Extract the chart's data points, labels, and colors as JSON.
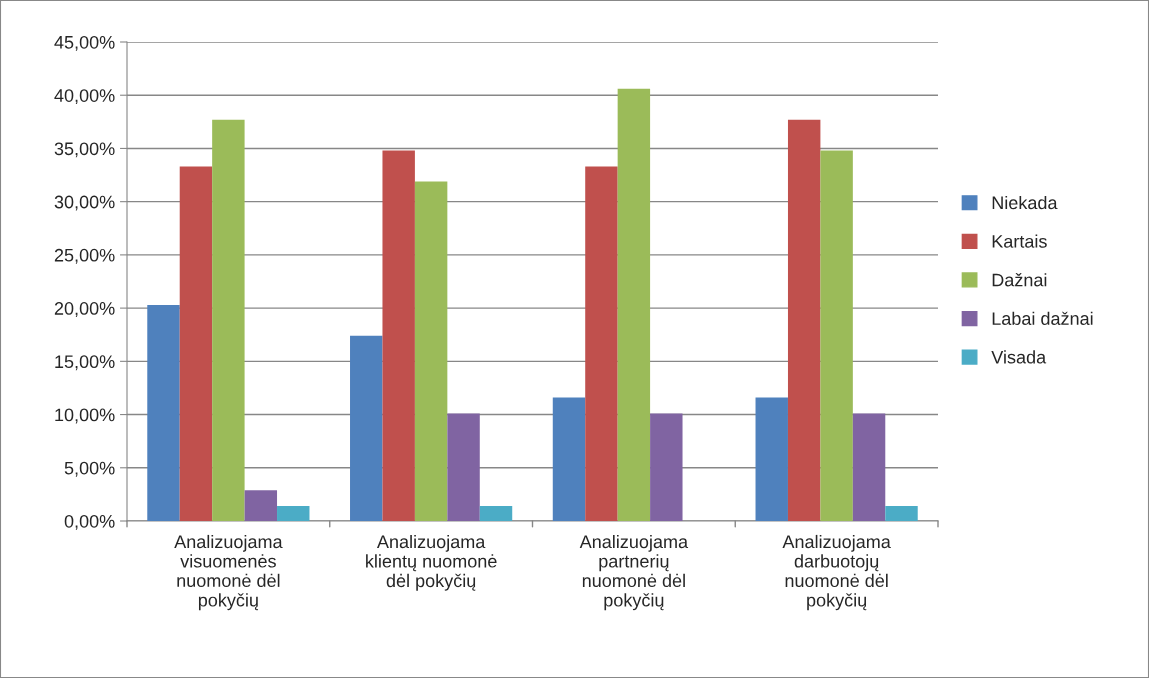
{
  "chart_data": {
    "type": "bar",
    "categories": [
      "Analizuojama visuomenės nuomonė dėl pokyčių",
      "Analizuojama klientų nuomonė dėl pokyčių",
      "Analizuojama partnerių nuomonė dėl pokyčių",
      "Analizuojama darbuotojų nuomonė dėl pokyčių"
    ],
    "series": [
      {
        "name": "Niekada",
        "color": "#4f81bd",
        "values": [
          20.3,
          17.4,
          11.6,
          11.6
        ]
      },
      {
        "name": "Kartais",
        "color": "#c0504d",
        "values": [
          33.3,
          34.8,
          33.3,
          37.7
        ]
      },
      {
        "name": "Dažnai",
        "color": "#9bbb59",
        "values": [
          37.7,
          31.9,
          40.6,
          34.8
        ]
      },
      {
        "name": "Labai dažnai",
        "color": "#8064a2",
        "values": [
          2.9,
          10.1,
          10.1,
          10.1
        ]
      },
      {
        "name": "Visada",
        "color": "#4bacc6",
        "values": [
          1.4,
          1.4,
          null,
          1.4
        ]
      }
    ],
    "ylim": [
      0,
      45
    ],
    "yticks": [
      {
        "value": 0,
        "label": "0,00%"
      },
      {
        "value": 5,
        "label": "5,00%"
      },
      {
        "value": 10,
        "label": "10,00%"
      },
      {
        "value": 15,
        "label": "15,00%"
      },
      {
        "value": 20,
        "label": "20,00%"
      },
      {
        "value": 25,
        "label": "25,00%"
      },
      {
        "value": 30,
        "label": "30,00%"
      },
      {
        "value": 35,
        "label": "35,00%"
      },
      {
        "value": 40,
        "label": "40,00%"
      },
      {
        "value": 45,
        "label": "45,00%"
      }
    ],
    "grid": "y",
    "legend": "right"
  }
}
